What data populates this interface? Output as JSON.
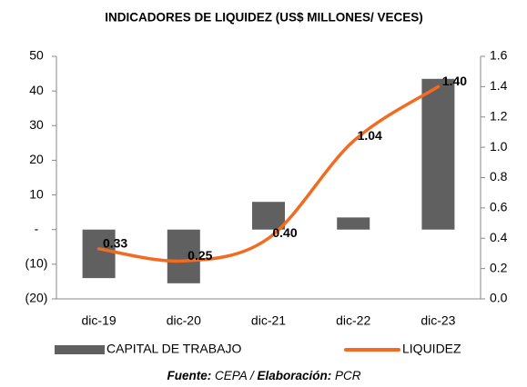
{
  "chart_data": {
    "type": "bar",
    "title": "INDICADORES DE LIQUIDEZ (US$ MILLONES/ VECES)",
    "categories": [
      "dic-19",
      "dic-20",
      "dic-21",
      "dic-22",
      "dic-23"
    ],
    "series": [
      {
        "name": "CAPITAL DE TRABAJO",
        "type": "bar",
        "color": "#606060",
        "values": [
          -14,
          -15.5,
          8,
          3.5,
          43.5
        ]
      },
      {
        "name": "LIQUIDEZ",
        "type": "line",
        "axis": "y2",
        "color": "#f26b21",
        "values": [
          0.33,
          0.25,
          0.4,
          1.04,
          1.4
        ],
        "value_labels": [
          "0.33",
          "0.25",
          "0.40",
          "1.04",
          "1.40"
        ]
      }
    ],
    "ylim": [
      -20,
      50
    ],
    "yticks": [
      {
        "value": -20,
        "label": "(20)"
      },
      {
        "value": -10,
        "label": "(10)"
      },
      {
        "value": 0,
        "label": "-"
      },
      10,
      20,
      30,
      40,
      50
    ],
    "y2lim": [
      0,
      1.6
    ],
    "y2ticks": [
      {
        "value": 0,
        "label": "0.0"
      },
      0.2,
      0.4,
      0.6,
      0.8,
      {
        "value": 1,
        "label": "1.0"
      },
      1.2,
      1.4,
      1.6
    ],
    "source": [
      "Fuente:",
      " CEPA / ",
      "Elaboración:",
      " PCR"
    ]
  }
}
